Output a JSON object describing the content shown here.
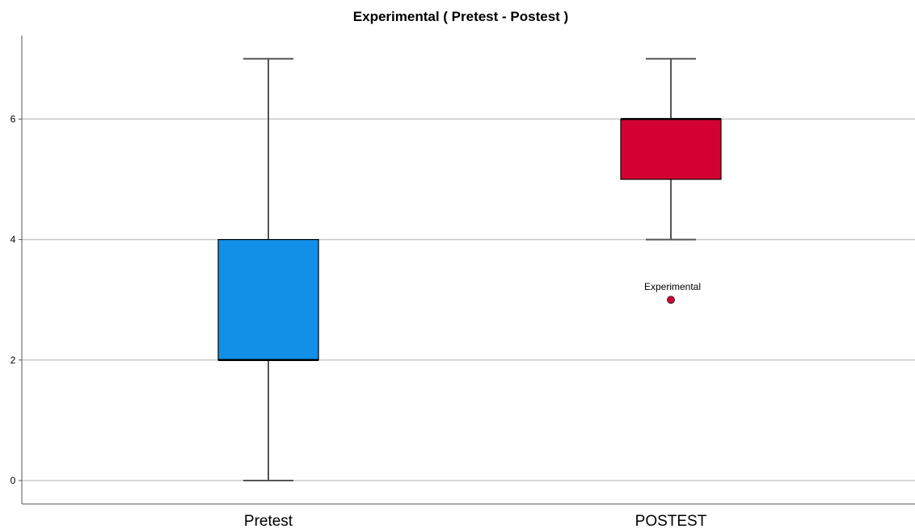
{
  "chart_data": {
    "type": "boxplot",
    "title": "Experimental ( Pretest  - Postest )",
    "xlabel": "",
    "ylabel": "",
    "categories": [
      "Pretest",
      "POSTEST"
    ],
    "boxes": [
      {
        "category": "Pretest",
        "min": 0,
        "q1": 2,
        "median": 2,
        "q3": 4,
        "max": 7,
        "color": "#1290E8",
        "outliers": []
      },
      {
        "category": "POSTEST",
        "min": 4,
        "q1": 5,
        "median": 6,
        "q3": 6,
        "max": 7,
        "color": "#D50032",
        "outliers": [
          {
            "value": 3,
            "label": "Experimental"
          }
        ]
      }
    ],
    "y_ticks": [
      0,
      2,
      4,
      6
    ],
    "y_tick_labels": [
      "0",
      "2",
      "4",
      "6"
    ],
    "ylim": [
      -0.4,
      7.4
    ],
    "grid": true,
    "colors": {
      "pretest": "#1290E8",
      "postest": "#D50032",
      "grid": "#c8c8c8",
      "whisker": "#555555"
    }
  }
}
